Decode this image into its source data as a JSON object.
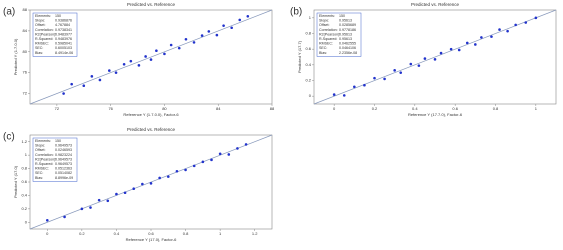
{
  "chart_data": [
    {
      "type": "scatter",
      "panel_label": "(a)",
      "title": "Predicted vs. Reference",
      "x_label": "Reference Y (1.7.0.0), Factor-6",
      "y_label": "Predicted Y (1.7.0.0)",
      "x": [
        72.5,
        73.1,
        74.0,
        74.6,
        75.2,
        75.9,
        76.4,
        77.0,
        77.5,
        78.1,
        78.6,
        79.0,
        79.4,
        80.0,
        80.5,
        81.1,
        81.6,
        82.2,
        82.8,
        83.3,
        83.9,
        84.4,
        85.0,
        85.6,
        86.2
      ],
      "values": [
        72.0,
        73.8,
        73.5,
        75.3,
        74.6,
        76.4,
        76.0,
        77.6,
        78.2,
        77.4,
        79.1,
        78.5,
        80.2,
        79.6,
        81.3,
        80.7,
        82.4,
        81.8,
        83.1,
        83.9,
        83.2,
        85.0,
        84.6,
        86.1,
        86.8
      ],
      "color": "#2233cc",
      "xlim": [
        70,
        88
      ],
      "ylim": [
        70,
        88
      ],
      "xticks": [
        72,
        76,
        80,
        84,
        88
      ],
      "yticks": [
        72,
        76,
        80,
        84,
        88
      ],
      "stats": [
        {
          "label": "Elements:",
          "value": "150"
        },
        {
          "label": "Slope:",
          "value": "0.9386876"
        },
        {
          "label": "Offset:",
          "value": "4.767884"
        },
        {
          "label": "Correlation:",
          "value": "0.9738341"
        },
        {
          "label": "R2(Pearson):",
          "value": "0.9483977"
        },
        {
          "label": "R-Squared:",
          "value": "0.9483976"
        },
        {
          "label": "RMSEC:",
          "value": "0.5985041"
        },
        {
          "label": "SEC:",
          "value": "0.6005103"
        },
        {
          "label": "Bias:",
          "value": "8.4914e-06"
        }
      ]
    },
    {
      "type": "scatter",
      "panel_label": "(b)",
      "title": "Predicted vs. Reference",
      "x_label": "Reference Y (17.7.0), Factor-6",
      "y_label": "Predicted Y (17.7)",
      "x": [
        0.0,
        0.05,
        0.1,
        0.15,
        0.2,
        0.25,
        0.3,
        0.33,
        0.38,
        0.42,
        0.45,
        0.5,
        0.53,
        0.58,
        0.62,
        0.66,
        0.7,
        0.73,
        0.78,
        0.82,
        0.86,
        0.9,
        0.95,
        1.0
      ],
      "values": [
        0.02,
        0.01,
        0.12,
        0.14,
        0.23,
        0.22,
        0.33,
        0.3,
        0.41,
        0.39,
        0.48,
        0.47,
        0.55,
        0.6,
        0.59,
        0.68,
        0.66,
        0.75,
        0.76,
        0.85,
        0.83,
        0.91,
        0.94,
        1.0
      ],
      "color": "#2233cc",
      "xlim": [
        -0.1,
        1.1
      ],
      "ylim": [
        -0.1,
        1.1
      ],
      "xticks": [
        0,
        0.2,
        0.4,
        0.6,
        0.8,
        1
      ],
      "yticks": [
        0,
        0.2,
        0.4,
        0.6,
        0.8,
        1
      ],
      "stats": [
        {
          "label": "Elements:",
          "value": "150"
        },
        {
          "label": "Slope:",
          "value": "0.95613"
        },
        {
          "label": "Offset:",
          "value": "0.0285689"
        },
        {
          "label": "Correlation:",
          "value": "0.9778186"
        },
        {
          "label": "R2(Pearson):",
          "value": "0.95613"
        },
        {
          "label": "R-Squared:",
          "value": "0.95613"
        },
        {
          "label": "RMSEC:",
          "value": "0.0462555"
        },
        {
          "label": "SEC:",
          "value": "0.0464106"
        },
        {
          "label": "Bias:",
          "value": "2.2356e-08"
        }
      ]
    },
    {
      "type": "scatter",
      "panel_label": "(c)",
      "title": "Predicted vs. Reference",
      "x_label": "Reference Y (17.0), Factor-6",
      "y_label": "Predicted Y (17.0)",
      "x": [
        0.0,
        0.1,
        0.2,
        0.25,
        0.3,
        0.35,
        0.4,
        0.45,
        0.5,
        0.55,
        0.6,
        0.65,
        0.7,
        0.75,
        0.8,
        0.85,
        0.9,
        0.95,
        1.0,
        1.05,
        1.1,
        1.15
      ],
      "values": [
        0.03,
        0.08,
        0.2,
        0.22,
        0.33,
        0.32,
        0.42,
        0.44,
        0.5,
        0.57,
        0.58,
        0.66,
        0.68,
        0.76,
        0.78,
        0.84,
        0.9,
        0.93,
        1.02,
        1.01,
        1.1,
        1.16
      ],
      "color": "#2233cc",
      "xlim": [
        -0.1,
        1.3
      ],
      "ylim": [
        -0.1,
        1.3
      ],
      "xticks": [
        0,
        0.2,
        0.4,
        0.6,
        0.8,
        1,
        1.2
      ],
      "yticks": [
        0,
        0.2,
        0.4,
        0.6,
        0.8,
        1,
        1.2
      ],
      "stats": [
        {
          "label": "Elements:",
          "value": "150"
        },
        {
          "label": "Slope:",
          "value": "0.9649573"
        },
        {
          "label": "Offset:",
          "value": "0.0246593"
        },
        {
          "label": "Correlation:",
          "value": "0.9823224"
        },
        {
          "label": "R2(Pearson):",
          "value": "0.9649573"
        },
        {
          "label": "R-Squared:",
          "value": "0.9649573"
        },
        {
          "label": "RMSEC:",
          "value": "0.0512363"
        },
        {
          "label": "SEC:",
          "value": "0.0514082"
        },
        {
          "label": "Bias:",
          "value": "8.8996e-09"
        }
      ]
    }
  ]
}
